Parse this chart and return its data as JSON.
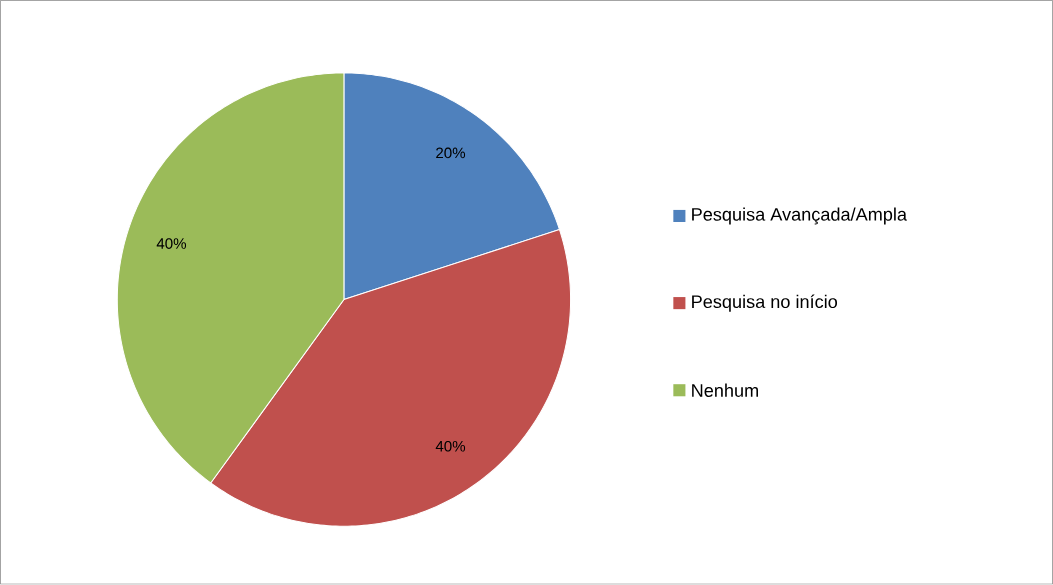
{
  "chart_data": {
    "type": "pie",
    "categories": [
      "Pesquisa Avançada/Ampla",
      "Pesquisa no início",
      "Nenhum"
    ],
    "values": [
      20,
      40,
      40
    ],
    "colors": [
      "#4f81bd",
      "#c0504d",
      "#9bbb59"
    ],
    "value_labels": [
      "20%",
      "40%",
      "40%"
    ],
    "legend": "right"
  }
}
